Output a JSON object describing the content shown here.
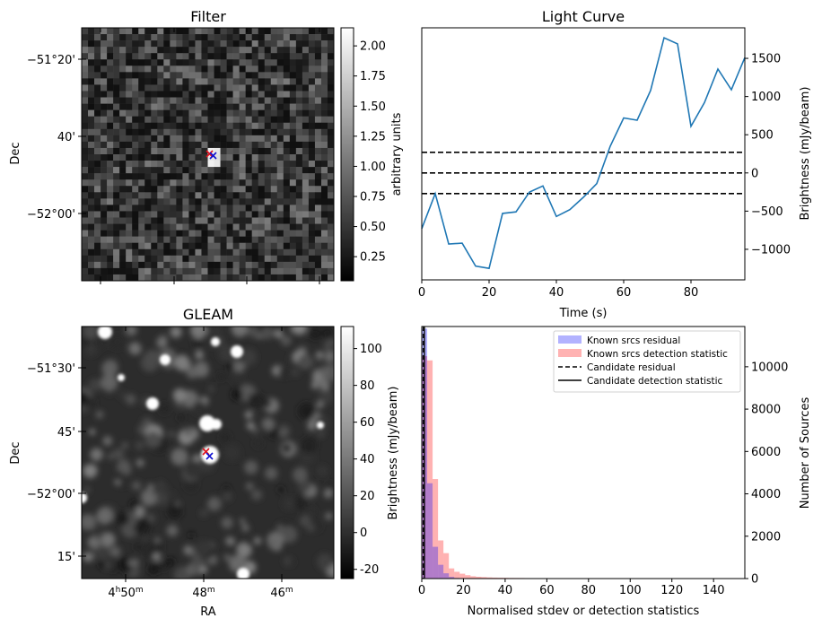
{
  "panels": {
    "filter": {
      "title": "Filter",
      "dec_label": "Dec",
      "dec_ticks": [
        "-51°20'",
        "40'",
        "-52°00'"
      ],
      "colorbar": {
        "label": "arbitrary units",
        "min": 0.05,
        "max": 2.15,
        "ticks": [
          "0.25",
          "0.50",
          "0.75",
          "1.00",
          "1.25",
          "1.50",
          "1.75",
          "2.00"
        ],
        "tick_values": [
          0.25,
          0.5,
          0.75,
          1.0,
          1.25,
          1.5,
          1.75,
          2.0
        ]
      }
    },
    "gleam": {
      "title": "GLEAM",
      "dec_label": "Dec",
      "ra_label": "RA",
      "dec_ticks": [
        "-51°30'",
        "45'",
        "-52°00'",
        "15'"
      ],
      "ra_ticks": [
        {
          "main": "4",
          "sup1": "h",
          "mid": "50",
          "sup2": "m"
        },
        {
          "main": "48",
          "sup1": "",
          "mid": "",
          "sup2": "m"
        },
        {
          "main": "46",
          "sup1": "",
          "mid": "",
          "sup2": "m"
        }
      ],
      "colorbar": {
        "label": "Brightness (mJy/beam)",
        "min": -25,
        "max": 112,
        "ticks": [
          "-20",
          "0",
          "20",
          "40",
          "60",
          "80",
          "100"
        ],
        "tick_values": [
          -20,
          0,
          20,
          40,
          60,
          80,
          100
        ]
      }
    }
  },
  "markers": {
    "red": "#e0101a",
    "blue": "#1010d0"
  },
  "chart_data": [
    {
      "type": "line",
      "title": "Light Curve",
      "xlabel": "Time (s)",
      "ylabel": "Brightness (mJy/beam)",
      "xlim": [
        0,
        96
      ],
      "ylim": [
        -1400,
        1900
      ],
      "xticks": [
        0,
        20,
        40,
        60,
        80
      ],
      "yticks": [
        -1000,
        -500,
        0,
        500,
        1000,
        1500
      ],
      "series": [
        {
          "color": "#1f77b4",
          "x": [
            0,
            4,
            8,
            12,
            16,
            20,
            24,
            28,
            32,
            36,
            40,
            44,
            48,
            52,
            56,
            60,
            64,
            68,
            72,
            76,
            80,
            84,
            88,
            92,
            96
          ],
          "values": [
            -730,
            -270,
            -930,
            -920,
            -1220,
            -1250,
            -530,
            -510,
            -250,
            -170,
            -570,
            -480,
            -320,
            -140,
            350,
            720,
            690,
            1080,
            1770,
            1690,
            610,
            920,
            1360,
            1090,
            1510
          ]
        }
      ],
      "hlines": [
        270,
        0,
        -270
      ]
    },
    {
      "type": "bar",
      "xlabel": "Normalised stdev or detection statistics",
      "ylabel": "Number of Sources",
      "xlim": [
        0,
        155
      ],
      "ylim": [
        0,
        11900
      ],
      "xticks": [
        0,
        20,
        40,
        60,
        80,
        100,
        120,
        140
      ],
      "yticks": [
        0,
        2000,
        4000,
        6000,
        8000,
        10000
      ],
      "bin_width": 2.6,
      "legend": [
        {
          "label": "Known srcs residual",
          "kind": "patch",
          "color": "#7b7bff"
        },
        {
          "label": "Known srcs detection statistic",
          "kind": "patch",
          "color": "#ff8c8c"
        },
        {
          "label": "Candidate residual",
          "kind": "dashed"
        },
        {
          "label": "Candidate detection statistic",
          "kind": "solid"
        }
      ],
      "series": [
        {
          "name": "Known srcs residual",
          "color": "#0000ff",
          "alpha": 0.3,
          "values": [
            11800,
            4500,
            1500,
            650,
            250,
            80,
            30,
            10
          ]
        },
        {
          "name": "Known srcs detection statistic",
          "color": "#ff0000",
          "alpha": 0.3,
          "values": [
            10500,
            10300,
            4700,
            1800,
            1200,
            480,
            320,
            230,
            160,
            110,
            85,
            70,
            55,
            45,
            40,
            35,
            30,
            28,
            25,
            22,
            20,
            18,
            16,
            15,
            14,
            13,
            12,
            11,
            10,
            10,
            9,
            9,
            8,
            8,
            7,
            7,
            6,
            6,
            5,
            5,
            5,
            4,
            4,
            4,
            3,
            3,
            3,
            3,
            2,
            2,
            2,
            2,
            2,
            2,
            2,
            1,
            1,
            1,
            1
          ]
        }
      ],
      "candidate_residual": 0.7,
      "candidate_detection": 1.3
    }
  ]
}
